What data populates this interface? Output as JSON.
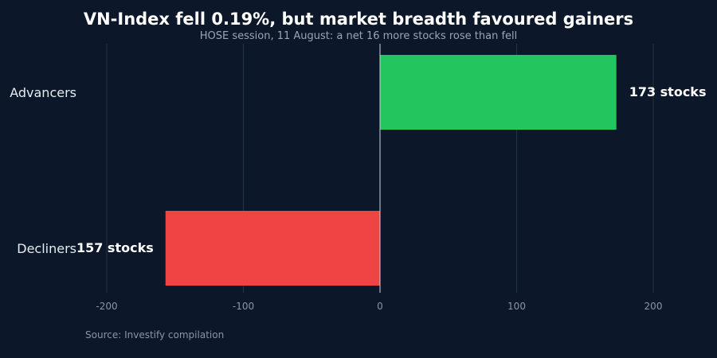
{
  "chart_data": {
    "type": "bar",
    "orientation": "horizontal",
    "title": "VN-Index fell 0.19%, but market breadth favoured gainers",
    "subtitle": "HOSE session, 11 August: a net 16 more stocks rose than fell",
    "categories": [
      "Advancers",
      "Decliners"
    ],
    "values": [
      173,
      -157
    ],
    "data_labels": [
      "173 stocks",
      "157 stocks"
    ],
    "colors": [
      "#22c55e",
      "#ef4444"
    ],
    "xlim": [
      -200,
      200
    ],
    "xticks": [
      -200,
      -100,
      0,
      100,
      200
    ],
    "xtick_labels": [
      "-200",
      "-100",
      "0",
      "100",
      "200"
    ],
    "xlabel": "",
    "ylabel": "",
    "grid": true,
    "source": "Source: Investify compilation"
  }
}
